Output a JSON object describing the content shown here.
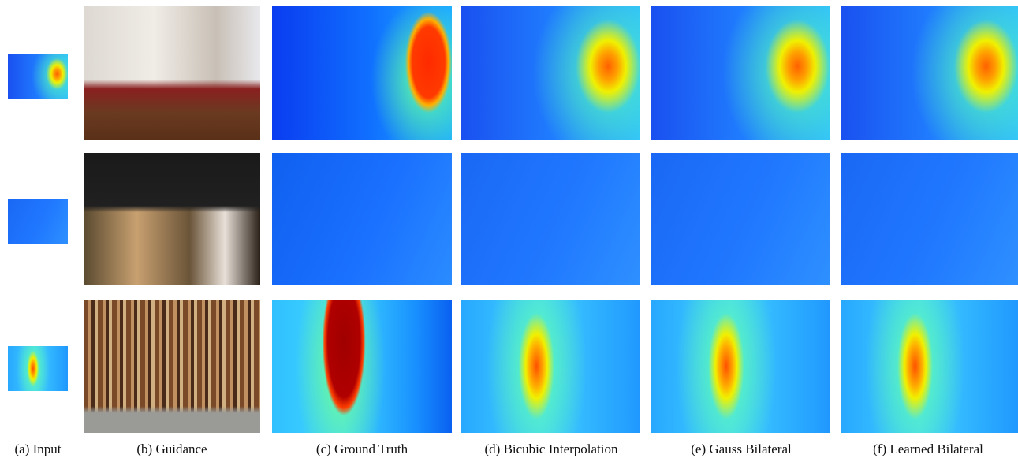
{
  "captions": [
    "(a) Input",
    "(b) Guidance",
    "(c) Ground Truth",
    "(d) Bicubic Interpolation",
    "(e) Gauss Bilateral",
    "(f) Learned Bilateral"
  ]
}
